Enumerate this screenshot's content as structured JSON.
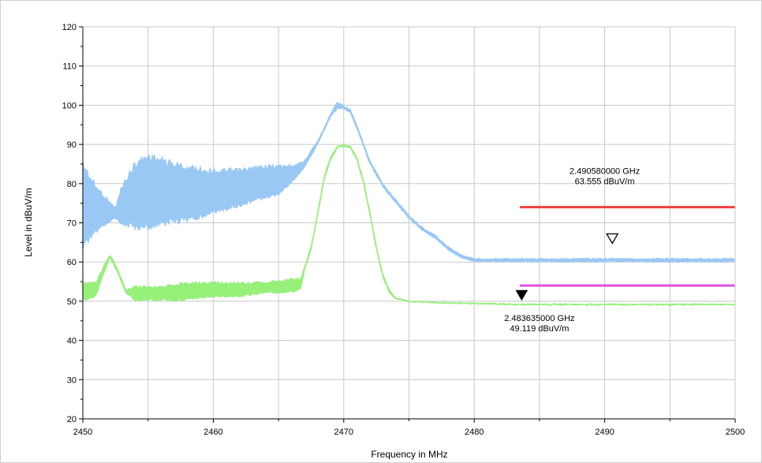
{
  "chart_data": {
    "type": "line",
    "title": "",
    "xlabel": "Frequency in MHz",
    "ylabel": "Level in dBuV/m",
    "xlim": [
      2450,
      2500
    ],
    "ylim": [
      20,
      120
    ],
    "x_ticks": [
      2450,
      2460,
      2470,
      2480,
      2490,
      2500
    ],
    "y_ticks": [
      20,
      30,
      40,
      50,
      60,
      70,
      80,
      90,
      100,
      110,
      120
    ],
    "grid": true,
    "series": [
      {
        "key": "peak",
        "color": "#99c8f5",
        "band": [
          {
            "x": 2450.0,
            "lo": 63,
            "hi": 86
          },
          {
            "x": 2451.0,
            "lo": 67,
            "hi": 80
          },
          {
            "x": 2452.0,
            "lo": 70,
            "hi": 76
          },
          {
            "x": 2452.5,
            "lo": 71,
            "hi": 74
          },
          {
            "x": 2453.0,
            "lo": 69,
            "hi": 80
          },
          {
            "x": 2454.0,
            "lo": 68,
            "hi": 86
          },
          {
            "x": 2455.0,
            "lo": 68,
            "hi": 88
          },
          {
            "x": 2456.0,
            "lo": 69,
            "hi": 87
          },
          {
            "x": 2458.0,
            "lo": 70,
            "hi": 85
          },
          {
            "x": 2460.0,
            "lo": 72,
            "hi": 84
          },
          {
            "x": 2462.0,
            "lo": 74,
            "hi": 84
          },
          {
            "x": 2464.0,
            "lo": 76,
            "hi": 85
          },
          {
            "x": 2465.0,
            "lo": 77,
            "hi": 85
          },
          {
            "x": 2466.0,
            "lo": 80,
            "hi": 85
          },
          {
            "x": 2467.0,
            "lo": 84,
            "hi": 86
          },
          {
            "x": 2468.0,
            "lo": 90,
            "hi": 91
          },
          {
            "x": 2469.0,
            "lo": 97,
            "hi": 98
          },
          {
            "x": 2469.5,
            "lo": 99,
            "hi": 101
          },
          {
            "x": 2470.0,
            "lo": 99,
            "hi": 100
          },
          {
            "x": 2470.5,
            "lo": 98,
            "hi": 99
          },
          {
            "x": 2471.0,
            "lo": 94,
            "hi": 95
          },
          {
            "x": 2472.0,
            "lo": 85,
            "hi": 86
          },
          {
            "x": 2473.0,
            "lo": 79,
            "hi": 80
          },
          {
            "x": 2474.0,
            "lo": 75,
            "hi": 76
          },
          {
            "x": 2475.0,
            "lo": 71,
            "hi": 72
          },
          {
            "x": 2476.0,
            "lo": 68,
            "hi": 69
          },
          {
            "x": 2477.0,
            "lo": 66,
            "hi": 67
          },
          {
            "x": 2478.0,
            "lo": 63,
            "hi": 64
          },
          {
            "x": 2479.0,
            "lo": 61,
            "hi": 62
          },
          {
            "x": 2480.0,
            "lo": 60,
            "hi": 61
          },
          {
            "x": 2485.0,
            "lo": 60,
            "hi": 61
          },
          {
            "x": 2490.0,
            "lo": 60,
            "hi": 61
          },
          {
            "x": 2495.0,
            "lo": 60,
            "hi": 61
          },
          {
            "x": 2500.0,
            "lo": 60,
            "hi": 61
          }
        ]
      },
      {
        "key": "average",
        "color": "#96f07a",
        "band": [
          {
            "x": 2450.0,
            "lo": 50,
            "hi": 55
          },
          {
            "x": 2451.0,
            "lo": 51,
            "hi": 55
          },
          {
            "x": 2451.6,
            "lo": 57,
            "hi": 59
          },
          {
            "x": 2452.1,
            "lo": 61,
            "hi": 62
          },
          {
            "x": 2452.7,
            "lo": 57,
            "hi": 58
          },
          {
            "x": 2453.3,
            "lo": 52,
            "hi": 53
          },
          {
            "x": 2454.0,
            "lo": 50,
            "hi": 54
          },
          {
            "x": 2456.0,
            "lo": 50,
            "hi": 54
          },
          {
            "x": 2458.0,
            "lo": 50,
            "hi": 55
          },
          {
            "x": 2460.0,
            "lo": 51,
            "hi": 55
          },
          {
            "x": 2462.0,
            "lo": 51,
            "hi": 55
          },
          {
            "x": 2464.0,
            "lo": 52,
            "hi": 55
          },
          {
            "x": 2466.0,
            "lo": 52,
            "hi": 56
          },
          {
            "x": 2466.7,
            "lo": 53,
            "hi": 56
          },
          {
            "x": 2467.0,
            "lo": 58,
            "hi": 59
          },
          {
            "x": 2467.5,
            "lo": 63,
            "hi": 64
          },
          {
            "x": 2468.0,
            "lo": 72,
            "hi": 73
          },
          {
            "x": 2468.5,
            "lo": 81,
            "hi": 82
          },
          {
            "x": 2469.0,
            "lo": 86,
            "hi": 87
          },
          {
            "x": 2469.5,
            "lo": 89,
            "hi": 89.6
          },
          {
            "x": 2470.0,
            "lo": 89.4,
            "hi": 90
          },
          {
            "x": 2470.5,
            "lo": 89,
            "hi": 89.6
          },
          {
            "x": 2471.0,
            "lo": 86,
            "hi": 87
          },
          {
            "x": 2471.5,
            "lo": 80,
            "hi": 81
          },
          {
            "x": 2472.0,
            "lo": 72,
            "hi": 73
          },
          {
            "x": 2472.5,
            "lo": 63,
            "hi": 64
          },
          {
            "x": 2473.0,
            "lo": 56,
            "hi": 57
          },
          {
            "x": 2473.5,
            "lo": 52,
            "hi": 53
          },
          {
            "x": 2474.0,
            "lo": 50.5,
            "hi": 51
          },
          {
            "x": 2475.0,
            "lo": 49.8,
            "hi": 50.2
          },
          {
            "x": 2478.0,
            "lo": 49.4,
            "hi": 49.8
          },
          {
            "x": 2483.6,
            "lo": 49.0,
            "hi": 49.4
          },
          {
            "x": 2490.0,
            "lo": 49.0,
            "hi": 49.4
          },
          {
            "x": 2500.0,
            "lo": 49.0,
            "hi": 49.4
          }
        ]
      }
    ],
    "limit_lines": [
      {
        "key": "peak-limit",
        "color": "#f0403c",
        "y": 74,
        "x_start": 2483.5,
        "x_end": 2500
      },
      {
        "key": "average-limit",
        "color": "#e050e0",
        "y": 54,
        "x_start": 2483.5,
        "x_end": 2500
      }
    ],
    "markers": [
      {
        "key": "peak-marker",
        "style": "open",
        "x": 2490.58,
        "y": 63.555
      },
      {
        "key": "average-marker",
        "style": "filled",
        "x": 2483.635,
        "y": 49.119
      }
    ],
    "annotations": [
      {
        "key": "peak-marker-label",
        "line1": "2.490580000 GHz",
        "line2": "63.555 dBuV/m",
        "anchor_x": 2490.0,
        "anchor_y": 82.5
      },
      {
        "key": "average-marker-label",
        "line1": "2.483635000 GHz",
        "line2": "49.119 dBuV/m",
        "anchor_x": 2485.0,
        "anchor_y": 45.0
      }
    ]
  }
}
